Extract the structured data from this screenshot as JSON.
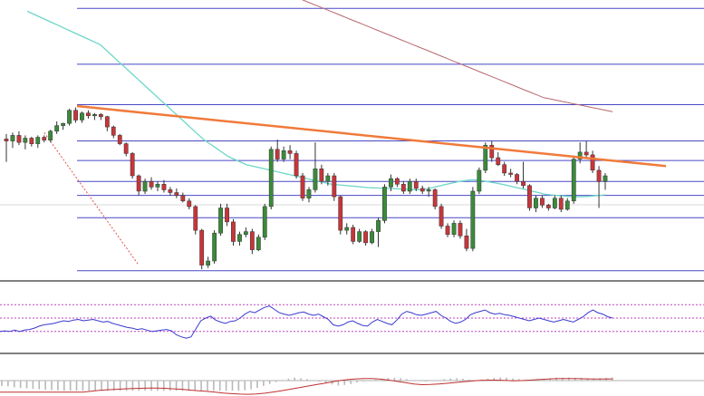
{
  "colors": {
    "background": "#ffffff",
    "bull_candle": "#3a8a3a",
    "bear_candle": "#c8353a",
    "wick": "#333333",
    "fib_level": "#4848c8",
    "trendline": "#f07a3a",
    "fast_ma": "#6ed6c8",
    "slow_ma": "#b86870",
    "fib_diagonal": "#e05050",
    "rsi_line": "#3a3ad0",
    "rsi_band": "#c040c0",
    "macd_signal": "#c03030",
    "macd_hist": "#b8b8b8",
    "panel_divider": "#808080",
    "baseline": "#b0b0b0"
  },
  "chart_data": [
    {
      "type": "candlestick",
      "panel": "price",
      "title": "",
      "xlabel": "",
      "ylabel": "",
      "grid": false,
      "ylim": [
        0,
        100
      ],
      "candles": [
        [
          50.2,
          52.0,
          42.0,
          49.5
        ],
        [
          49.5,
          52.5,
          47.0,
          51.5
        ],
        [
          51.5,
          53.0,
          48.0,
          49.0
        ],
        [
          49.0,
          51.5,
          46.5,
          50.5
        ],
        [
          50.5,
          51.0,
          47.5,
          48.5
        ],
        [
          48.5,
          51.5,
          47.0,
          50.8
        ],
        [
          50.8,
          51.5,
          49.0,
          49.8
        ],
        [
          49.8,
          53.5,
          49.0,
          53.0
        ],
        [
          53.0,
          56.5,
          52.0,
          55.0
        ],
        [
          55.0,
          56.0,
          53.5,
          55.8
        ],
        [
          55.8,
          61.0,
          55.0,
          60.5
        ],
        [
          60.5,
          61.5,
          56.0,
          57.0
        ],
        [
          57.0,
          60.0,
          56.0,
          59.5
        ],
        [
          59.5,
          60.5,
          57.5,
          58.5
        ],
        [
          58.5,
          59.5,
          57.0,
          59.0
        ],
        [
          59.0,
          59.5,
          57.0,
          58.2
        ],
        [
          58.2,
          58.5,
          53.0,
          54.5
        ],
        [
          54.5,
          55.0,
          50.5,
          51.5
        ],
        [
          51.5,
          52.0,
          48.0,
          48.5
        ],
        [
          48.5,
          49.0,
          44.0,
          45.0
        ],
        [
          45.0,
          45.5,
          36.0,
          37.0
        ],
        [
          37.0,
          37.5,
          30.0,
          31.5
        ],
        [
          31.5,
          36.0,
          30.5,
          35.0
        ],
        [
          35.0,
          36.5,
          32.0,
          33.0
        ],
        [
          33.0,
          35.0,
          31.5,
          34.0
        ],
        [
          34.0,
          35.5,
          31.0,
          32.0
        ],
        [
          32.0,
          33.0,
          30.0,
          31.0
        ],
        [
          31.0,
          32.5,
          29.0,
          30.0
        ],
        [
          30.0,
          31.0,
          27.5,
          28.0
        ],
        [
          28.0,
          29.0,
          25.0,
          26.0
        ],
        [
          26.0,
          26.5,
          16.0,
          17.5
        ],
        [
          17.5,
          18.0,
          3.5,
          5.0
        ],
        [
          5.0,
          8.0,
          4.0,
          6.5
        ],
        [
          6.5,
          17.5,
          5.5,
          16.5
        ],
        [
          16.5,
          27.0,
          15.5,
          25.5
        ],
        [
          25.5,
          27.0,
          19.0,
          20.5
        ],
        [
          20.5,
          21.5,
          12.0,
          13.5
        ],
        [
          13.5,
          17.0,
          12.0,
          16.0
        ],
        [
          16.0,
          18.5,
          15.0,
          17.0
        ],
        [
          17.0,
          18.0,
          9.0,
          10.5
        ],
        [
          10.5,
          16.0,
          10.0,
          15.0
        ],
        [
          15.0,
          27.0,
          14.0,
          26.0
        ],
        [
          26.0,
          47.5,
          25.0,
          46.5
        ],
        [
          46.5,
          50.0,
          42.0,
          43.0
        ],
        [
          43.0,
          47.5,
          42.0,
          46.0
        ],
        [
          46.0,
          48.0,
          43.0,
          45.0
        ],
        [
          45.0,
          46.0,
          36.0,
          37.0
        ],
        [
          37.0,
          38.0,
          28.0,
          29.0
        ],
        [
          29.0,
          33.0,
          27.5,
          32.0
        ],
        [
          32.0,
          49.0,
          31.0,
          39.5
        ],
        [
          39.5,
          41.0,
          34.0,
          35.0
        ],
        [
          35.0,
          38.0,
          33.5,
          37.0
        ],
        [
          37.0,
          38.0,
          28.0,
          29.5
        ],
        [
          29.5,
          30.0,
          16.0,
          17.5
        ],
        [
          17.5,
          20.0,
          16.0,
          18.5
        ],
        [
          18.5,
          19.5,
          12.5,
          13.5
        ],
        [
          13.5,
          18.0,
          13.0,
          17.0
        ],
        [
          17.0,
          17.5,
          12.0,
          13.0
        ],
        [
          13.0,
          18.0,
          12.5,
          17.0
        ],
        [
          17.0,
          22.0,
          11.5,
          21.0
        ],
        [
          21.0,
          34.0,
          20.0,
          33.0
        ],
        [
          33.0,
          37.5,
          31.5,
          36.0
        ],
        [
          36.0,
          36.5,
          33.0,
          34.0
        ],
        [
          34.0,
          35.0,
          30.5,
          31.5
        ],
        [
          31.5,
          36.0,
          30.5,
          35.0
        ],
        [
          35.0,
          36.0,
          31.5,
          32.5
        ],
        [
          32.5,
          33.5,
          30.5,
          31.5
        ],
        [
          31.5,
          33.0,
          29.5,
          32.0
        ],
        [
          32.0,
          32.5,
          25.0,
          26.0
        ],
        [
          26.0,
          27.0,
          18.0,
          19.0
        ],
        [
          19.0,
          20.0,
          15.0,
          16.0
        ],
        [
          16.0,
          21.0,
          15.0,
          20.0
        ],
        [
          20.0,
          21.0,
          14.5,
          15.5
        ],
        [
          15.5,
          18.0,
          10.0,
          11.0
        ],
        [
          11.0,
          33.0,
          10.0,
          31.5
        ],
        [
          31.5,
          40.0,
          30.5,
          39.0
        ],
        [
          39.0,
          49.0,
          38.0,
          48.0
        ],
        [
          48.0,
          49.5,
          42.0,
          43.5
        ],
        [
          43.5,
          45.5,
          40.5,
          41.0
        ],
        [
          41.0,
          42.0,
          37.0,
          38.0
        ],
        [
          38.0,
          39.5,
          36.5,
          37.5
        ],
        [
          37.5,
          38.0,
          34.0,
          35.0
        ],
        [
          35.0,
          42.0,
          32.5,
          33.5
        ],
        [
          33.5,
          34.0,
          24.5,
          25.5
        ],
        [
          25.5,
          30.0,
          24.0,
          29.0
        ],
        [
          29.0,
          30.0,
          25.5,
          26.5
        ],
        [
          26.5,
          27.0,
          24.5,
          25.5
        ],
        [
          25.5,
          30.0,
          25.0,
          29.0
        ],
        [
          29.0,
          30.0,
          24.0,
          25.0
        ],
        [
          25.0,
          29.0,
          24.5,
          28.0
        ],
        [
          28.0,
          44.0,
          27.0,
          43.0
        ],
        [
          43.0,
          49.0,
          41.5,
          45.5
        ],
        [
          45.5,
          49.5,
          43.0,
          44.5
        ],
        [
          44.5,
          46.0,
          38.0,
          39.0
        ],
        [
          39.0,
          40.5,
          25.5,
          35.0
        ],
        [
          35.0,
          38.0,
          32.0,
          37.0
        ]
      ],
      "fast_moving_average": [
        96,
        95,
        94,
        93,
        92,
        91,
        90,
        89,
        88,
        87,
        86,
        85,
        84,
        82,
        80,
        78,
        76,
        74,
        72,
        70,
        68,
        66,
        64,
        62,
        60,
        58,
        56,
        54,
        52,
        50,
        48.5,
        47,
        45.5,
        44,
        43,
        42,
        41,
        40.5,
        40,
        39.5,
        39,
        38.5,
        38,
        37.5,
        37,
        36.5,
        36,
        35.5,
        35,
        34.5,
        34,
        33.8,
        33.6,
        33.4,
        33.2,
        33,
        32.8,
        32.7,
        32.6,
        32.5,
        32.4,
        32.3,
        32.2,
        32.1,
        32,
        32,
        32.5,
        33,
        33.5,
        34,
        34.5,
        35,
        35.3,
        35.6,
        35.5,
        35.2,
        34.8,
        34.4,
        34,
        33.5,
        33,
        32.5,
        32,
        31.5,
        31,
        30.5,
        30.2,
        30,
        29.8,
        29.6,
        29.5,
        29.5,
        29.6,
        29.8,
        30,
        30.2
      ],
      "slow_moving_average": [
        116,
        115.5,
        115,
        114.5,
        114,
        113.5,
        113,
        112,
        111,
        110,
        109,
        108,
        107,
        106,
        105,
        104,
        103,
        102,
        101,
        100,
        99,
        98,
        97,
        96,
        95,
        94,
        93,
        92,
        91,
        90,
        89,
        88,
        87,
        86,
        85,
        84,
        83,
        82,
        81,
        80,
        79,
        78,
        77,
        76,
        75,
        74,
        73,
        72,
        71,
        70,
        69,
        68,
        67,
        66,
        65,
        64.5,
        64,
        63.5,
        63,
        62.5,
        62,
        61.5,
        61,
        60.5,
        60
      ],
      "trendline": [
        [
          3,
          62.0
        ],
        [
          59,
          40.5
        ]
      ],
      "fib_levels": [
        3.0,
        22.0,
        30.0,
        35.0,
        42.5,
        49.5,
        62.5,
        77.0,
        97.0
      ],
      "fib_diagonal": [
        [
          6,
          52.5
        ],
        [
          21,
          5.0
        ]
      ]
    },
    {
      "type": "line",
      "panel": "rsi",
      "title": "",
      "ylim": [
        0,
        100
      ],
      "bands": [
        70,
        50,
        30
      ],
      "values": [
        30,
        31,
        30,
        32,
        30,
        32,
        33,
        35,
        38,
        40,
        41,
        42,
        44,
        46,
        45,
        47,
        48,
        46,
        47,
        48,
        46,
        44,
        45,
        42,
        40,
        38,
        36,
        35,
        33,
        34,
        32,
        30,
        31,
        32,
        33,
        31,
        25,
        22,
        20,
        22,
        34,
        46,
        50,
        53,
        47,
        44,
        42,
        45,
        46,
        50,
        56,
        60,
        58,
        62,
        66,
        68,
        63,
        58,
        56,
        54,
        56,
        58,
        59,
        56,
        54,
        56,
        52,
        48,
        40,
        38,
        40,
        44,
        46,
        42,
        39,
        38,
        44,
        48,
        45,
        42,
        40,
        47,
        56,
        60,
        58,
        55,
        54,
        56,
        58,
        60,
        54,
        50,
        45,
        42,
        44,
        48,
        55,
        58,
        60,
        62,
        58,
        56,
        57,
        55,
        54,
        52,
        50,
        48,
        46,
        48,
        50,
        48,
        46,
        44,
        46,
        48,
        46,
        44,
        48,
        52,
        58,
        62,
        58,
        56,
        52,
        50
      ]
    },
    {
      "type": "bar",
      "panel": "macd",
      "title": "",
      "ylim": [
        -1.5,
        1.5
      ],
      "histogram": [
        -0.55,
        -0.6,
        -0.7,
        -0.75,
        -0.8,
        -0.85,
        -0.9,
        -0.95,
        -1.0,
        -1.02,
        -1.05,
        -1.05,
        -1.05,
        -1.05,
        -1.05,
        -1.05,
        -1.05,
        -1.05,
        -1.05,
        -1.05,
        -1.05,
        -1.05,
        -1.05,
        -1.05,
        -1.05,
        -1.05,
        -1.05,
        -1.05,
        -1.05,
        -1.05,
        -1.05,
        -1.05,
        -1.05,
        -1.05,
        -1.05,
        -1.05,
        -1.05,
        -1.05,
        -1.05,
        -1.0,
        -0.9,
        -0.75,
        -0.55,
        -0.35,
        -0.15,
        0.05,
        0.2,
        0.3,
        0.25,
        0.15,
        0.05,
        -0.1,
        -0.25,
        -0.4,
        -0.5,
        -0.45,
        -0.35,
        -0.2,
        -0.1,
        0.0,
        0.1,
        0.2,
        0.28,
        0.3,
        0.25,
        0.15,
        0.05,
        -0.05,
        -0.1,
        -0.05,
        0.05,
        0.15,
        0.22,
        0.25,
        0.2,
        0.1,
        0.05,
        0.12,
        0.2,
        0.28,
        0.32,
        0.3,
        0.22,
        0.15,
        0.08,
        0.05,
        0.1,
        0.18,
        0.25,
        0.3,
        0.3,
        0.32,
        0.3,
        0.28,
        0.25,
        0.22,
        0.25,
        0.3,
        0.32
      ],
      "signal": [
        -1.2,
        -1.2,
        -1.2,
        -1.2,
        -1.2,
        -1.2,
        -1.2,
        -1.2,
        -1.2,
        -1.2,
        -1.2,
        -1.1,
        -1.0,
        -0.95,
        -0.9,
        -0.85,
        -0.82,
        -0.8,
        -0.78,
        -0.78,
        -0.8,
        -0.85,
        -0.9,
        -0.98,
        -1.05,
        -1.12,
        -1.2,
        -1.28,
        -1.35,
        -1.4,
        -1.42,
        -1.38,
        -1.3,
        -1.18,
        -1.05,
        -0.9,
        -0.75,
        -0.6,
        -0.45,
        -0.3,
        -0.15,
        0.0,
        0.1,
        0.18,
        0.22,
        0.22,
        0.15,
        0.05,
        -0.08,
        -0.22,
        -0.35,
        -0.42,
        -0.4,
        -0.35,
        -0.28,
        -0.2,
        -0.12,
        -0.05,
        0.02,
        0.05,
        0.05,
        0.02,
        -0.02,
        0.0,
        0.05,
        0.1,
        0.15,
        0.2,
        0.22,
        0.22,
        0.2,
        0.18,
        0.16,
        0.16,
        0.18
      ]
    }
  ]
}
